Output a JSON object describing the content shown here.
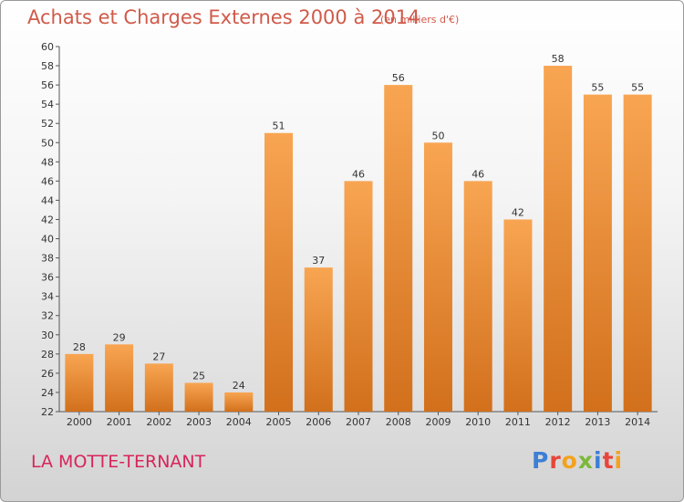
{
  "header": {
    "title": "Achats et Charges Externes 2000 à 2014",
    "subtitle": "(en milliers d'€)"
  },
  "footer": {
    "commune": "LA MOTTE-TERNANT",
    "logo": "Proxiti",
    "logo_colors": [
      "#3b7fd6",
      "#e8453a",
      "#f4a21c",
      "#7cb83a",
      "#3b7fd6",
      "#e8453a",
      "#f4a21c"
    ]
  },
  "colors": {
    "bar_light": "#f8a552",
    "bar_dark": "#d2701c",
    "title": "#d05a4a",
    "commune": "#d8245a"
  },
  "chart_data": {
    "type": "bar",
    "title": "Achats et Charges Externes 2000 à 2014",
    "subtitle": "(en milliers d'€)",
    "categories": [
      "2000",
      "2001",
      "2002",
      "2003",
      "2004",
      "2005",
      "2006",
      "2007",
      "2008",
      "2009",
      "2010",
      "2011",
      "2012",
      "2013",
      "2014"
    ],
    "values": [
      28,
      29,
      27,
      25,
      24,
      51,
      37,
      46,
      56,
      50,
      46,
      42,
      58,
      55,
      55
    ],
    "ylim": [
      22,
      60
    ],
    "yticks": [
      22,
      24,
      26,
      28,
      30,
      32,
      34,
      36,
      38,
      40,
      42,
      44,
      46,
      48,
      50,
      52,
      54,
      56,
      58,
      60
    ],
    "grid": false,
    "xlabel": "",
    "ylabel": ""
  }
}
